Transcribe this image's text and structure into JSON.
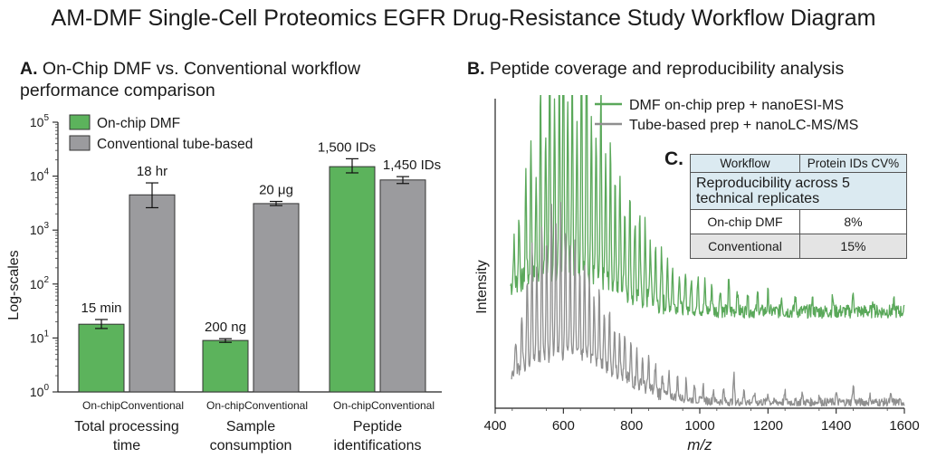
{
  "title": "AM-DMF Single-Cell Proteomics EGFR Drug-Resistance Study Workflow Diagram",
  "panel_a": {
    "letter": "A.",
    "title": "On-Chip DMF vs. Conventional workflow performance comparison",
    "ylabel": "Log-scales",
    "legend": [
      {
        "label": "On-chip DMF",
        "color": "#5cb35c"
      },
      {
        "label": "Conventional tube-based",
        "color": "#9b9b9e"
      }
    ]
  },
  "panel_b": {
    "letter": "B.",
    "title": "Peptide coverage and reproducibility analysis",
    "ylabel": "Intensity",
    "xlabel": "m/z",
    "legend": [
      {
        "label": "DMF on-chip prep + nanoESI-MS",
        "color": "#5aa85a"
      },
      {
        "label": "Tube-based prep + nanoLC-MS/MS",
        "color": "#8f8f8f"
      }
    ]
  },
  "panel_c": {
    "letter": "C.",
    "caption": "Reproducibility across 5 technical replicates",
    "headers": [
      "Workflow",
      "Protein IDs CV%"
    ],
    "rows": [
      [
        "On-chip DMF",
        "8%"
      ],
      [
        "Conventional",
        "15%"
      ]
    ]
  },
  "chart_data": [
    {
      "type": "bar",
      "scale": "log",
      "ylabel": "Log-scales",
      "ylim": [
        1,
        100000
      ],
      "yticks": [
        "10^0",
        "10^1",
        "10^2",
        "10^3",
        "10^4",
        "10^5"
      ],
      "groups": [
        {
          "name": "Total processing time",
          "bars": [
            {
              "tick": "On-chip",
              "series": "On-chip DMF",
              "value": 18,
              "err": [
                15,
                22
              ],
              "label": "15 min"
            },
            {
              "tick": "Conventional",
              "series": "Conventional tube-based",
              "value": 4500,
              "err": [
                2600,
                7500
              ],
              "label": "18 hr"
            }
          ]
        },
        {
          "name": "Sample consumption",
          "bars": [
            {
              "tick": "On-chip",
              "series": "On-chip DMF",
              "value": 9,
              "err": [
                8.3,
                9.7
              ],
              "label": "200 ng"
            },
            {
              "tick": "Conventional",
              "series": "Conventional tube-based",
              "value": 3100,
              "err": [
                2850,
                3400
              ],
              "label": "20 μg"
            }
          ]
        },
        {
          "name": "Peptide identifications",
          "bars": [
            {
              "tick": "On-chip",
              "series": "On-chip DMF",
              "value": 15000,
              "err": [
                11500,
                21000
              ],
              "label": "1,500 IDs"
            },
            {
              "tick": "Conventional",
              "series": "Conventional tube-based",
              "value": 8500,
              "err": [
                7300,
                9800
              ],
              "label": "1,450 IDs"
            }
          ]
        }
      ]
    },
    {
      "type": "line",
      "xlabel": "m/z",
      "ylabel": "Intensity",
      "xlim": [
        400,
        1600
      ],
      "xticks": [
        400,
        600,
        800,
        1000,
        1200,
        1400,
        1600
      ],
      "series": [
        {
          "name": "DMF on-chip prep + nanoESI-MS",
          "color": "#5aa85a",
          "baseline": 0.32,
          "noise": 0.05,
          "peaks": [
            [
              455,
              0.14
            ],
            [
              470,
              0.22
            ],
            [
              490,
              0.35
            ],
            [
              505,
              0.46
            ],
            [
              520,
              0.3
            ],
            [
              533,
              0.62
            ],
            [
              548,
              0.48
            ],
            [
              560,
              0.72
            ],
            [
              574,
              0.55
            ],
            [
              588,
              0.66
            ],
            [
              600,
              0.9
            ],
            [
              613,
              0.58
            ],
            [
              626,
              0.7
            ],
            [
              640,
              0.52
            ],
            [
              653,
              0.8
            ],
            [
              668,
              0.95
            ],
            [
              682,
              0.52
            ],
            [
              696,
              0.46
            ],
            [
              710,
              0.62
            ],
            [
              724,
              0.4
            ],
            [
              738,
              0.44
            ],
            [
              752,
              0.34
            ],
            [
              766,
              0.36
            ],
            [
              780,
              0.28
            ],
            [
              795,
              0.31
            ],
            [
              810,
              0.26
            ],
            [
              824,
              0.24
            ],
            [
              840,
              0.24
            ],
            [
              855,
              0.2
            ],
            [
              870,
              0.18
            ],
            [
              888,
              0.16
            ],
            [
              905,
              0.14
            ],
            [
              920,
              0.13
            ],
            [
              940,
              0.12
            ],
            [
              958,
              0.11
            ],
            [
              975,
              0.1
            ],
            [
              995,
              0.12
            ],
            [
              1015,
              0.09
            ],
            [
              1035,
              0.09
            ],
            [
              1060,
              0.08
            ],
            [
              1085,
              0.1
            ],
            [
              1110,
              0.08
            ],
            [
              1140,
              0.07
            ],
            [
              1170,
              0.06
            ],
            [
              1200,
              0.06
            ],
            [
              1240,
              0.05
            ],
            [
              1280,
              0.05
            ],
            [
              1330,
              0.04
            ],
            [
              1390,
              0.05
            ],
            [
              1450,
              0.07
            ],
            [
              1510,
              0.04
            ],
            [
              1570,
              0.03
            ]
          ]
        },
        {
          "name": "Tube-based prep + nanoLC-MS/MS",
          "color": "#8f8f8f",
          "baseline": 0.02,
          "noise": 0.03,
          "peaks": [
            [
              460,
              0.1
            ],
            [
              478,
              0.18
            ],
            [
              494,
              0.28
            ],
            [
              508,
              0.38
            ],
            [
              522,
              0.3
            ],
            [
              537,
              0.44
            ],
            [
              551,
              0.4
            ],
            [
              565,
              0.52
            ],
            [
              578,
              0.46
            ],
            [
              592,
              0.48
            ],
            [
              606,
              0.42
            ],
            [
              620,
              0.36
            ],
            [
              634,
              0.4
            ],
            [
              648,
              0.3
            ],
            [
              662,
              0.34
            ],
            [
              676,
              0.26
            ],
            [
              690,
              0.22
            ],
            [
              705,
              0.24
            ],
            [
              720,
              0.18
            ],
            [
              735,
              0.2
            ],
            [
              750,
              0.16
            ],
            [
              765,
              0.15
            ],
            [
              780,
              0.13
            ],
            [
              798,
              0.12
            ],
            [
              815,
              0.11
            ],
            [
              832,
              0.1
            ],
            [
              850,
              0.1
            ],
            [
              870,
              0.09
            ],
            [
              890,
              0.08
            ],
            [
              910,
              0.07
            ],
            [
              935,
              0.07
            ],
            [
              960,
              0.06
            ],
            [
              985,
              0.05
            ],
            [
              1010,
              0.05
            ],
            [
              1040,
              0.04
            ],
            [
              1070,
              0.04
            ],
            [
              1100,
              0.09
            ],
            [
              1130,
              0.04
            ],
            [
              1160,
              0.03
            ],
            [
              1200,
              0.03
            ],
            [
              1250,
              0.03
            ],
            [
              1300,
              0.03
            ],
            [
              1350,
              0.02
            ],
            [
              1400,
              0.03
            ],
            [
              1450,
              0.06
            ],
            [
              1500,
              0.02
            ],
            [
              1560,
              0.02
            ]
          ]
        }
      ]
    }
  ]
}
